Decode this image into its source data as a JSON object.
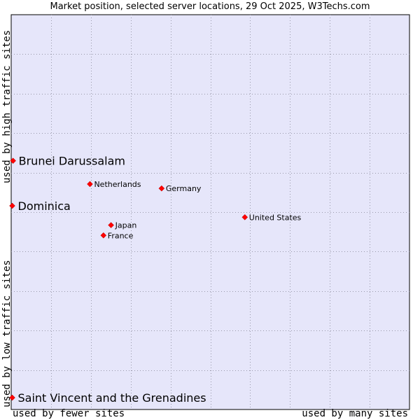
{
  "chart_data": {
    "type": "scatter",
    "title": "Market position, selected server locations, 29 Oct 2025, W3Techs.com",
    "xlabel_low": "used by fewer sites",
    "xlabel_high": "used by many sites",
    "ylabel_low": "used by low traffic sites",
    "ylabel_high": "used by high traffic sites",
    "xlim": [
      0,
      10
    ],
    "ylim": [
      0,
      10
    ],
    "grid": true,
    "colors": {
      "plot_bg": "#e6e6fa",
      "grid": "#9999aa",
      "marker": "#ff0000",
      "axis": "#000000"
    },
    "points": [
      {
        "label": "Brunei Darussalam",
        "x": 0.02,
        "y": 6.3,
        "highlight": true
      },
      {
        "label": "Dominica",
        "x": 0.0,
        "y": 5.16,
        "highlight": true
      },
      {
        "label": "Saint Vincent and the Grenadines",
        "x": 0.0,
        "y": 0.3,
        "highlight": true
      },
      {
        "label": "Netherlands",
        "x": 1.95,
        "y": 5.71,
        "highlight": false
      },
      {
        "label": "Germany",
        "x": 3.75,
        "y": 5.6,
        "highlight": false
      },
      {
        "label": "United States",
        "x": 5.84,
        "y": 4.87,
        "highlight": false
      },
      {
        "label": "Japan",
        "x": 2.48,
        "y": 4.67,
        "highlight": false
      },
      {
        "label": "France",
        "x": 2.29,
        "y": 4.41,
        "highlight": false
      }
    ]
  }
}
